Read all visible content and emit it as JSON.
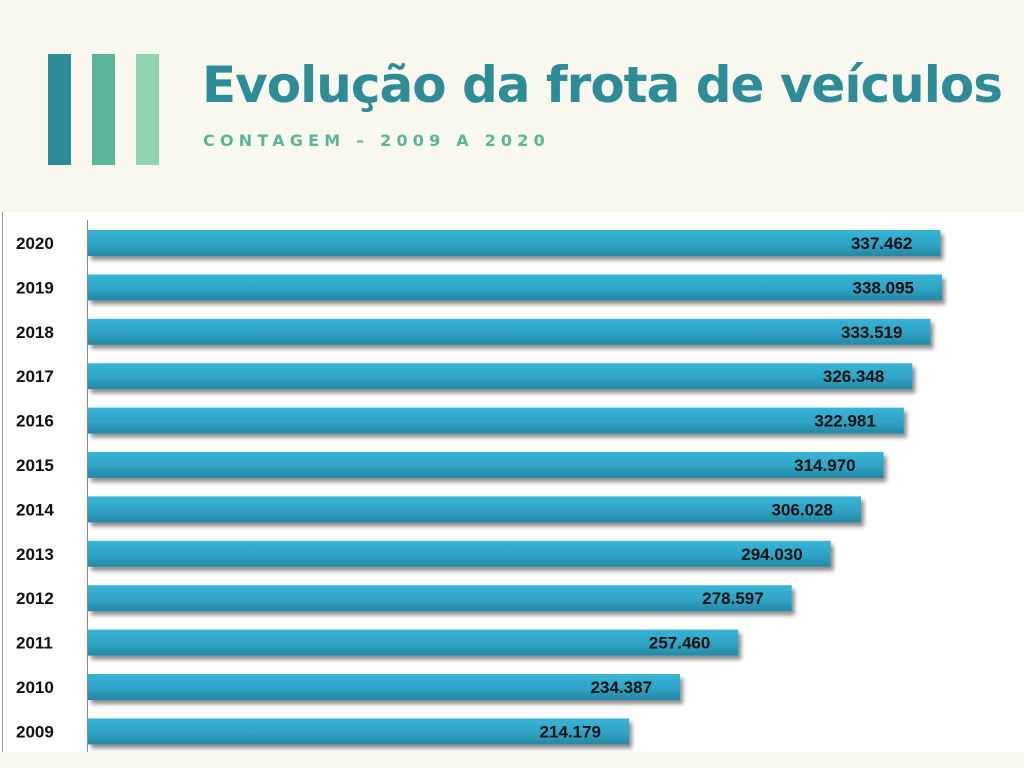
{
  "header": {
    "title": "Evolução da frota de veículos",
    "subtitle": "CONTAGEM – 2009 A 2020",
    "deco_colors": [
      "#2e8b98",
      "#5bb59a",
      "#8ed6b0"
    ]
  },
  "colors": {
    "title": "#2e8b98",
    "subtitle": "#5bb59a",
    "bar_top": "#38b4d6",
    "bar_bottom": "#2488a3",
    "label": "#111111"
  },
  "chart_data": {
    "type": "bar",
    "orientation": "horizontal",
    "title": "Evolução da frota de veículos",
    "subtitle": "CONTAGEM – 2009 A 2020",
    "xlabel": "",
    "ylabel": "",
    "categories": [
      "2020",
      "2019",
      "2018",
      "2017",
      "2016",
      "2015",
      "2014",
      "2013",
      "2012",
      "2011",
      "2010",
      "2009"
    ],
    "values": [
      337462,
      338095,
      333519,
      326348,
      322981,
      314970,
      306028,
      294030,
      278597,
      257460,
      234387,
      214179
    ],
    "value_labels": [
      "337.462",
      "338.095",
      "333.519",
      "326.348",
      "322.981",
      "314.970",
      "306.028",
      "294.030",
      "278.597",
      "257.460",
      "234.387",
      "214.179"
    ],
    "xlim": [
      0,
      338095
    ],
    "grid": false,
    "legend": "none"
  }
}
